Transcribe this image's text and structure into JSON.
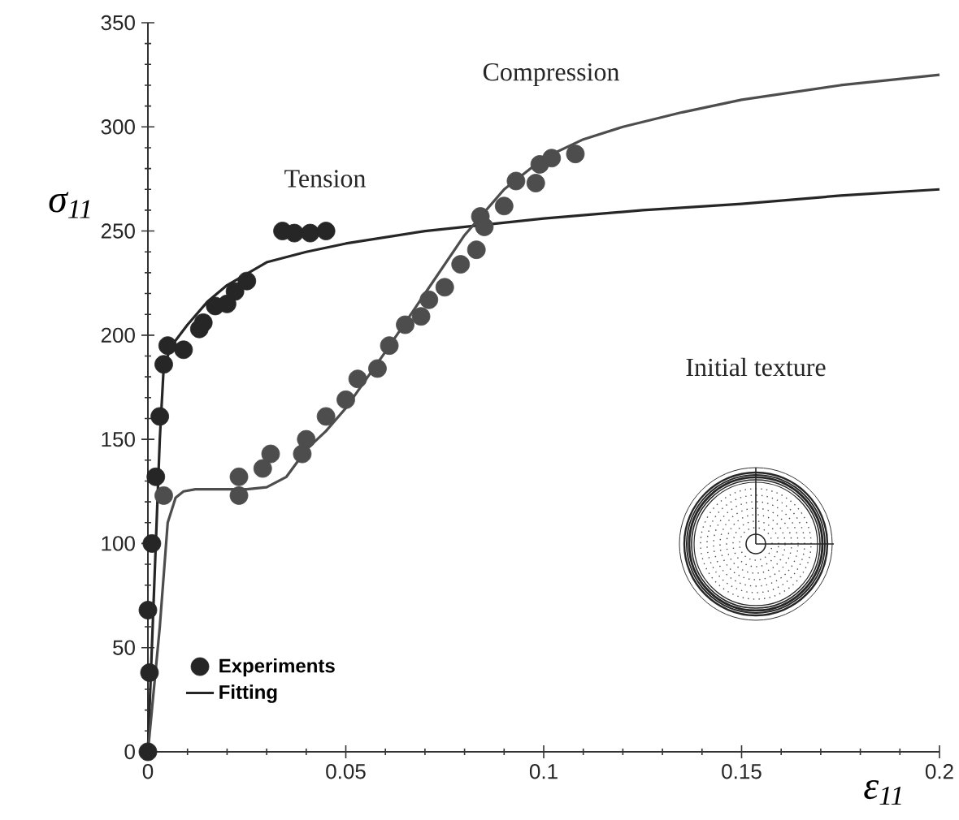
{
  "chart_data": {
    "type": "scatter",
    "xlabel": "ε$_{11}$",
    "ylabel": "σ$_{11}$",
    "xlim": [
      0,
      0.2
    ],
    "ylim": [
      0,
      350
    ],
    "xticks": [
      0,
      0.05,
      0.1,
      0.15,
      0.2
    ],
    "yticks": [
      0,
      50,
      100,
      150,
      200,
      250,
      300,
      350
    ],
    "legend": "bottom left",
    "marker": "circle",
    "annotations": [
      "Tension",
      "Compression",
      "Initial texture"
    ],
    "series": [
      {
        "name": "Experiments",
        "color": "#262626",
        "x": [
          0,
          0.0004,
          0,
          0.001,
          0.002,
          0.003,
          0.004,
          0.005,
          0.009,
          0.013,
          0.014,
          0.017,
          0.02,
          0.022,
          0.025,
          0.034,
          0.037,
          0.041,
          0.045
        ],
        "values": [
          0,
          38,
          68,
          100,
          132,
          161,
          186,
          195,
          193,
          203,
          206,
          214,
          215,
          221,
          226,
          250,
          249,
          249,
          250
        ]
      },
      {
        "color": "#4d4d4d",
        "x": [
          0.004,
          0.023,
          0.023,
          0.029,
          0.031,
          0.039,
          0.04,
          0.045,
          0.05,
          0.053,
          0.058,
          0.061,
          0.065,
          0.069,
          0.071,
          0.075,
          0.079,
          0.083,
          0.084,
          0.085,
          0.09,
          0.093,
          0.098,
          0.099,
          0.102,
          0.108
        ],
        "values": [
          123,
          132,
          123,
          136,
          143,
          143,
          150,
          161,
          169,
          179,
          184,
          195,
          205,
          209,
          217,
          223,
          234,
          241,
          257,
          252,
          262,
          274,
          273,
          282,
          285,
          287
        ]
      },
      {
        "name": "Fitting",
        "type": "line",
        "marker": "none",
        "color": "#262626",
        "x": [
          0,
          0.002,
          0.003,
          0.004,
          0.006,
          0.01,
          0.015,
          0.02,
          0.03,
          0.04,
          0.05,
          0.07,
          0.085,
          0.1,
          0.125,
          0.15,
          0.175,
          0.2
        ],
        "values": [
          0,
          100,
          150,
          185,
          195,
          205,
          216,
          224,
          235,
          240,
          244,
          250,
          253,
          256,
          260,
          263,
          267,
          270
        ]
      },
      {
        "type": "line",
        "marker": "none",
        "color": "#4d4d4d",
        "x": [
          0,
          0.003,
          0.005,
          0.007,
          0.009,
          0.012,
          0.025,
          0.03,
          0.035,
          0.04,
          0.045,
          0.05,
          0.06,
          0.07,
          0.08,
          0.09,
          0.1,
          0.11,
          0.12,
          0.135,
          0.15,
          0.175,
          0.2
        ],
        "values": [
          0,
          60,
          110,
          122,
          125,
          126,
          126,
          127,
          132,
          145,
          154,
          165,
          192,
          220,
          248,
          270,
          285,
          294,
          300,
          307,
          313,
          320,
          325
        ]
      }
    ]
  }
}
